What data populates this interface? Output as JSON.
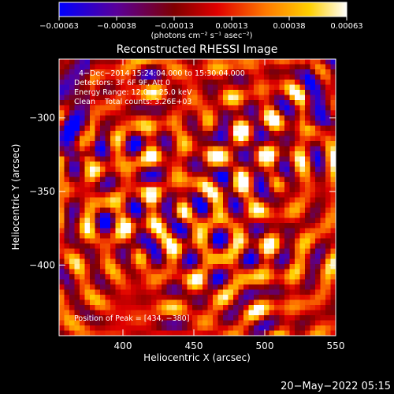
{
  "chart_data": {
    "type": "heatmap",
    "title": "Reconstructed RHESSI Image",
    "xlabel": "Heliocentric X (arcsec)",
    "ylabel": "Heliocentric Y (arcsec)",
    "xlim": [
      355,
      550
    ],
    "ylim": [
      -448,
      -260
    ],
    "x_ticks": [
      400,
      450,
      500,
      550
    ],
    "y_ticks": [
      -300,
      -350,
      -400
    ],
    "x_tick_labels": [
      "400",
      "450",
      "500",
      "550"
    ],
    "y_tick_labels": [
      "−300",
      "−350",
      "−400"
    ],
    "colorbar": {
      "range": [
        -0.00063,
        0.00063
      ],
      "ticks": [
        "−0.00063",
        "−0.00038",
        "−0.00013",
        "0.00013",
        "0.00038",
        "0.00063"
      ],
      "unit_label": "(photons cm⁻² s⁻¹ asec⁻²)",
      "colormap": [
        "#0000ff",
        "#5a0099",
        "#7f0000",
        "#e00000",
        "#ff7a00",
        "#ffd000",
        "#ffffff"
      ]
    },
    "annotations": [
      "4−Dec−2014 15:24:04.000 to 15:30:04.000",
      "Detectors: 3F 6F 9F, Att 0",
      "Energy Range: 12.0 − 25.0 keV",
      "Clean    Total counts: 3.26E+03"
    ],
    "peak_label": "Position of Peak = [434, −380]",
    "peak_position": [
      434,
      -380
    ]
  },
  "footer_timestamp": "20−May−2022 05:15"
}
